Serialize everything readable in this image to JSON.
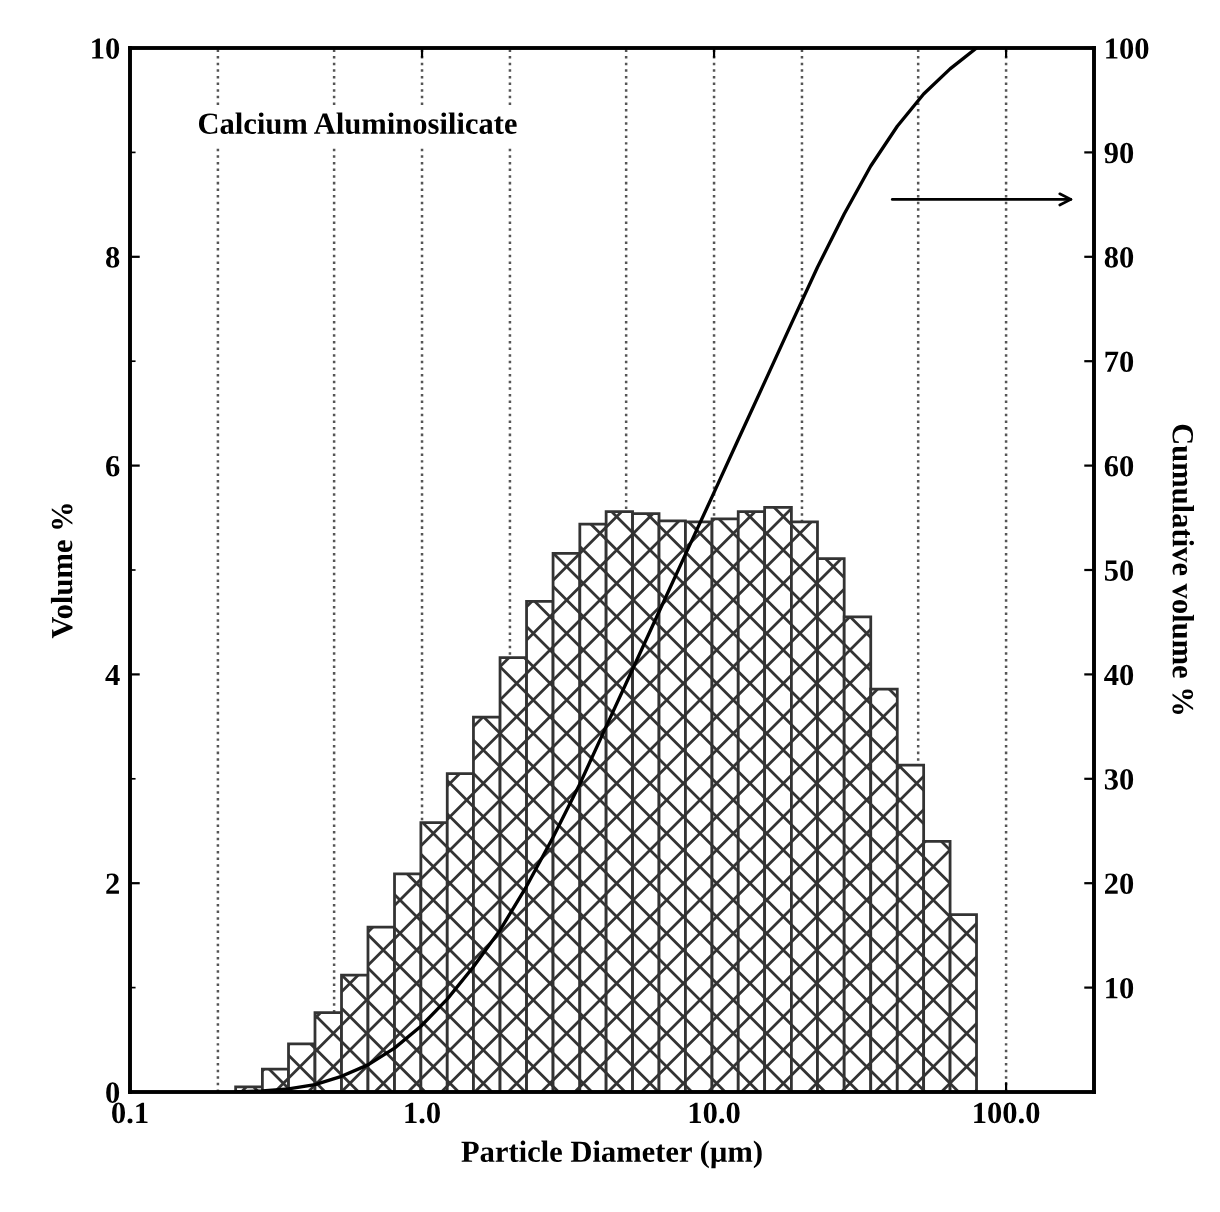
{
  "chart_data": {
    "type": "histogram",
    "xlabel": "Particle Diameter (µm)",
    "ylabel": "Volume %",
    "y2label": "Cumulative volume %",
    "annotations": [
      "Calcium Aluminosilicate"
    ],
    "log": "x",
    "xlim": [
      0.1,
      200
    ],
    "xticks": [
      {
        "value": 0.1,
        "label": "0.1"
      },
      {
        "value": 1,
        "label": "1.0"
      },
      {
        "value": 10,
        "label": "10.0"
      },
      {
        "value": 100,
        "label": "100.0"
      }
    ],
    "ylim": [
      0,
      10
    ],
    "yticks": [
      0,
      2,
      4,
      6,
      8,
      10
    ],
    "y2lim": [
      0,
      100
    ],
    "y2ticks": [
      10,
      20,
      30,
      40,
      50,
      60,
      70,
      80,
      90,
      100
    ],
    "bins": [
      0.23,
      0.284,
      0.349,
      0.43,
      0.53,
      0.653,
      0.805,
      0.991,
      1.22,
      1.5,
      1.85,
      2.28,
      2.81,
      3.47,
      4.27,
      5.26,
      6.48,
      7.98,
      9.84,
      12.1,
      14.9,
      18.4,
      22.6,
      27.9,
      34.4,
      42.4,
      52.2,
      64.3,
      79.2
    ],
    "ref_lines": [
      {
        "axis": "x",
        "value": 0.2,
        "line_style": "dotted"
      },
      {
        "axis": "x",
        "value": 0.5,
        "line_style": "dotted"
      },
      {
        "axis": "x",
        "value": 1,
        "line_style": "dotted"
      },
      {
        "axis": "x",
        "value": 2,
        "line_style": "dotted"
      },
      {
        "axis": "x",
        "value": 5,
        "line_style": "dotted"
      },
      {
        "axis": "x",
        "value": 10,
        "line_style": "dotted"
      },
      {
        "axis": "x",
        "value": 20,
        "line_style": "dotted"
      },
      {
        "axis": "x",
        "value": 50,
        "line_style": "dotted"
      },
      {
        "axis": "x",
        "value": 100,
        "line_style": "dotted"
      }
    ],
    "series": [
      {
        "color": "#333333",
        "values": [
          0.05,
          0.22,
          0.46,
          0.76,
          1.12,
          1.58,
          2.09,
          2.58,
          3.05,
          3.59,
          4.16,
          4.7,
          5.16,
          5.44,
          5.56,
          5.54,
          5.47,
          5.46,
          5.49,
          5.56,
          5.6,
          5.46,
          5.11,
          4.55,
          3.86,
          3.13,
          2.4,
          1.7
        ]
      },
      {
        "type": "line",
        "axis": "y2",
        "color": "#000000",
        "line_style": "solid",
        "x": [
          0.23,
          0.284,
          0.349,
          0.43,
          0.53,
          0.653,
          0.805,
          0.991,
          1.22,
          1.5,
          1.85,
          2.28,
          2.81,
          3.47,
          4.27,
          5.26,
          6.48,
          7.98,
          9.84,
          12.1,
          14.9,
          18.4,
          22.6,
          27.9,
          34.4,
          42.4,
          52.2,
          64.3,
          79.2
        ],
        "values": [
          0,
          0.1,
          0.3,
          0.7,
          1.5,
          2.6,
          4.2,
          6.3,
          8.9,
          12,
          15.5,
          19.7,
          24.4,
          29.5,
          35,
          40.5,
          46,
          51.5,
          57,
          62.5,
          68,
          73.6,
          79,
          84.1,
          88.7,
          92.5,
          95.6,
          98,
          100
        ]
      }
    ]
  }
}
